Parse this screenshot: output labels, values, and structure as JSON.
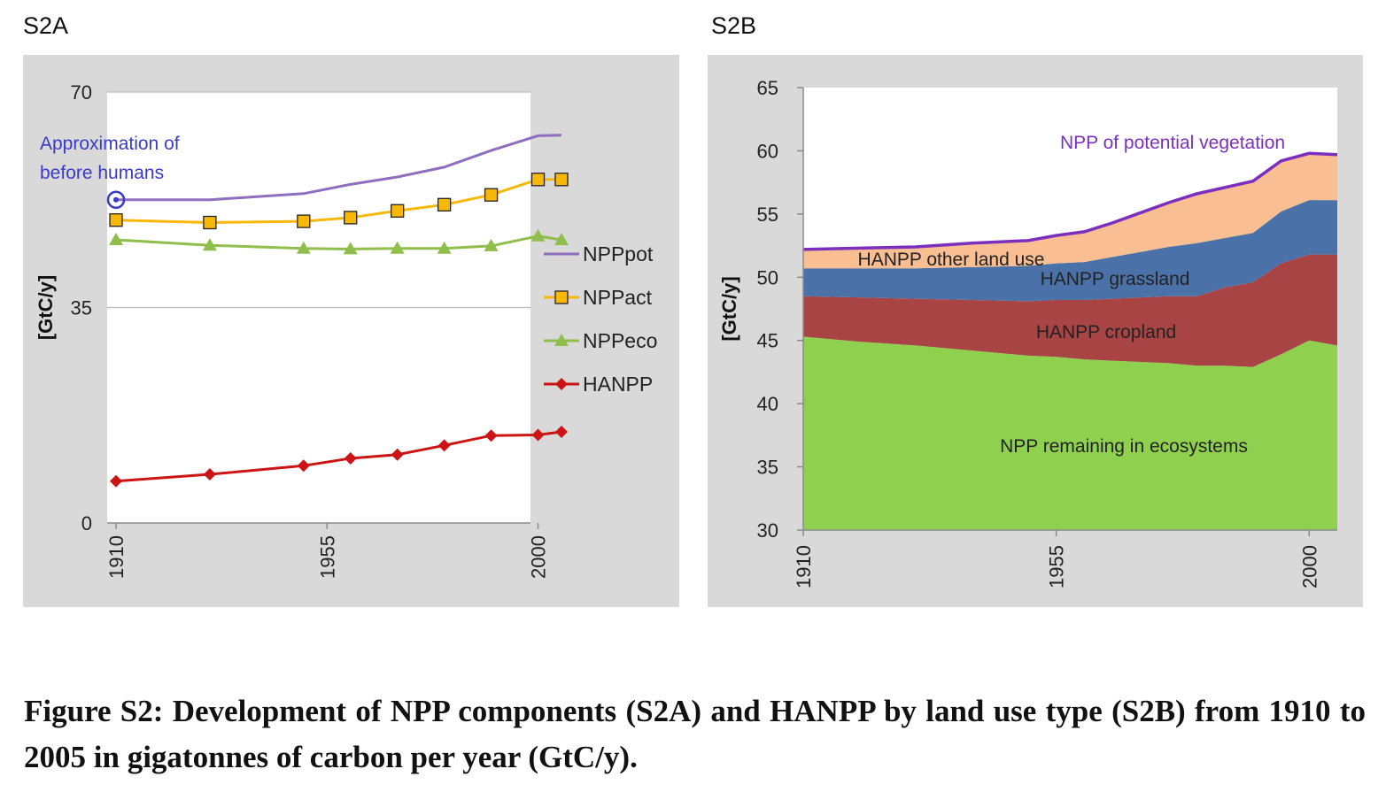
{
  "panels": {
    "a_label": "S2A",
    "b_label": "S2B"
  },
  "caption": "Figure S2: Development of NPP components (S2A) and HANPP by land use type (S2B) from 1910 to 2005 in gigatonnes of carbon per year (GtC/y).",
  "chart_data": [
    {
      "type": "line",
      "panel": "S2A",
      "ylabel": "[GtC/y]",
      "ylim": [
        0,
        70
      ],
      "yticks": [
        0,
        35,
        70
      ],
      "xlim": [
        1910,
        2005
      ],
      "xticks": [
        1910,
        1955,
        2000
      ],
      "grid": "horizontal",
      "legend_position": "right",
      "annotation": {
        "lines": [
          "Approximation of",
          "before humans"
        ],
        "color": "#3a3ac8",
        "point": [
          1910,
          52.5
        ]
      },
      "series": [
        {
          "name": "NPPpot",
          "color": "#8e6fbf",
          "marker": "none",
          "x": [
            1910,
            1930,
            1950,
            1960,
            1970,
            1980,
            1990,
            2000,
            2005
          ],
          "y": [
            52.5,
            52.5,
            53.5,
            55,
            56.2,
            57.8,
            60.5,
            62.9,
            63
          ]
        },
        {
          "name": "NPPact",
          "color": "#f7b80a",
          "marker": "square",
          "x": [
            1910,
            1930,
            1950,
            1960,
            1970,
            1980,
            1990,
            2000,
            2005
          ],
          "y": [
            49.2,
            48.8,
            49,
            49.6,
            50.7,
            51.7,
            53.3,
            55.8,
            55.8
          ]
        },
        {
          "name": "NPPeco",
          "color": "#8fbe4c",
          "marker": "triangle",
          "x": [
            1910,
            1930,
            1950,
            1960,
            1970,
            1980,
            1990,
            2000,
            2005
          ],
          "y": [
            46,
            45.1,
            44.6,
            44.5,
            44.6,
            44.6,
            45,
            46.6,
            46
          ]
        },
        {
          "name": "HANPP",
          "color": "#cc1414",
          "marker": "diamond",
          "x": [
            1910,
            1930,
            1950,
            1960,
            1970,
            1980,
            1990,
            2000,
            2005
          ],
          "y": [
            6.8,
            7.9,
            9.3,
            10.5,
            11.1,
            12.6,
            14.2,
            14.3,
            14.8
          ]
        }
      ]
    },
    {
      "type": "area",
      "panel": "S2B",
      "ylabel": "[GtC/y]",
      "ylim": [
        30,
        65
      ],
      "yticks": [
        30,
        35,
        40,
        45,
        50,
        55,
        60,
        65
      ],
      "xlim": [
        1910,
        2005
      ],
      "xticks": [
        1910,
        1955,
        2000
      ],
      "x": [
        1910,
        1920,
        1930,
        1940,
        1950,
        1955,
        1960,
        1965,
        1970,
        1975,
        1980,
        1985,
        1990,
        1995,
        2000,
        2005
      ],
      "series": [
        {
          "name": "NPP remaining in ecosystems",
          "color": "#8fd14f",
          "values": [
            45.3,
            44.9,
            44.6,
            44.2,
            43.8,
            43.7,
            43.5,
            43.4,
            43.3,
            43.2,
            43.0,
            43.0,
            42.9,
            43.9,
            45.0,
            44.6
          ]
        },
        {
          "name": "HANPP cropland",
          "color": "#a94444",
          "values": [
            3.2,
            3.5,
            3.7,
            4.0,
            4.3,
            4.5,
            4.7,
            4.9,
            5.1,
            5.3,
            5.5,
            6.2,
            6.7,
            7.2,
            6.8,
            7.2
          ]
        },
        {
          "name": "HANPP grassland",
          "color": "#4a72a8",
          "values": [
            2.2,
            2.3,
            2.4,
            2.6,
            2.8,
            2.9,
            3.0,
            3.3,
            3.6,
            3.9,
            4.2,
            3.9,
            3.9,
            4.1,
            4.3,
            4.3
          ]
        },
        {
          "name": "HANPP other land use",
          "color": "#f9be92",
          "values": [
            1.5,
            1.6,
            1.7,
            1.9,
            2.0,
            2.2,
            2.4,
            2.7,
            3.1,
            3.5,
            3.9,
            4.0,
            4.1,
            4.0,
            3.7,
            3.6
          ]
        }
      ],
      "npp_potential_line": {
        "name": "NPP of potential vegetation",
        "color": "#7b2fbf"
      }
    }
  ]
}
